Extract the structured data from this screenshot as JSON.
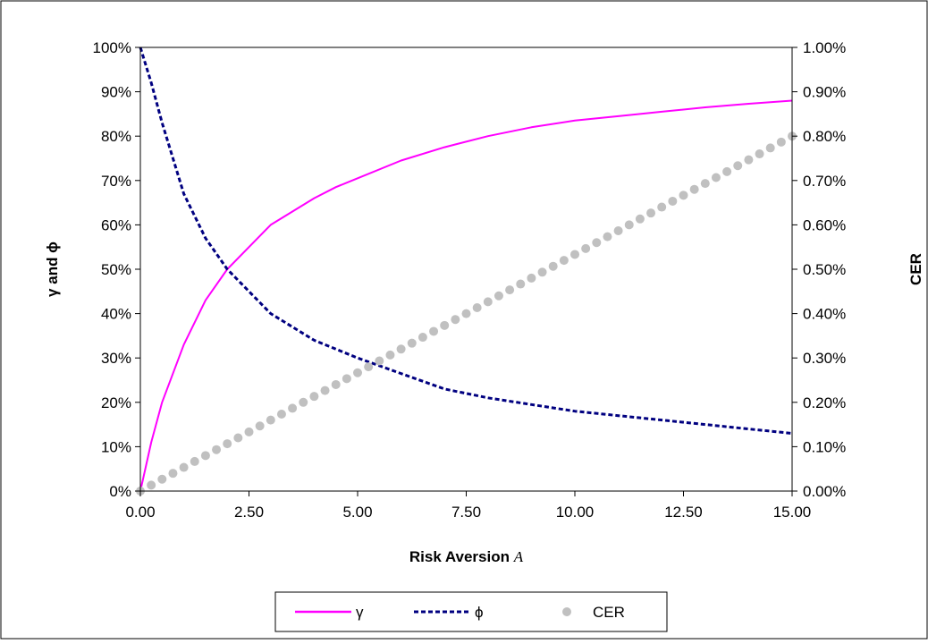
{
  "chart_data": {
    "type": "line",
    "title": "",
    "xlabel_text": "Risk Aversion ",
    "xlabel_var": "A",
    "ylabel_left": "γ and ϕ",
    "ylabel_right": "CER",
    "xlim": [
      0,
      15
    ],
    "xticks": [
      0,
      2.5,
      5,
      7.5,
      10,
      12.5,
      15
    ],
    "xtick_labels": [
      "0.00",
      "2.50",
      "5.00",
      "7.50",
      "10.00",
      "12.50",
      "15.00"
    ],
    "ylim_left": [
      0,
      100
    ],
    "yticks_left": [
      0,
      10,
      20,
      30,
      40,
      50,
      60,
      70,
      80,
      90,
      100
    ],
    "ytick_labels_left": [
      "0%",
      "10%",
      "20%",
      "30%",
      "40%",
      "50%",
      "60%",
      "70%",
      "80%",
      "90%",
      "100%"
    ],
    "ylim_right": [
      0,
      1
    ],
    "yticks_right": [
      0,
      0.1,
      0.2,
      0.3,
      0.4,
      0.5,
      0.6,
      0.7,
      0.8,
      0.9,
      1.0
    ],
    "ytick_labels_right": [
      "0.00%",
      "0.10%",
      "0.20%",
      "0.30%",
      "0.40%",
      "0.50%",
      "0.60%",
      "0.70%",
      "0.80%",
      "0.90%",
      "1.00%"
    ],
    "grid": false,
    "legend_position": "bottom",
    "x": [
      0.0,
      0.25,
      0.5,
      1.0,
      1.5,
      2.0,
      2.5,
      3.0,
      3.5,
      4.0,
      4.5,
      5.0,
      6.0,
      7.0,
      8.0,
      9.0,
      10.0,
      11.0,
      12.0,
      13.0,
      14.0,
      15.0
    ],
    "series": [
      {
        "name": "γ",
        "style": "solid",
        "color": "#ff00ff",
        "axis": "left",
        "values": [
          0,
          11,
          20,
          33,
          43,
          50,
          55,
          60,
          63,
          66,
          68.5,
          70.5,
          74.5,
          77.5,
          80,
          82,
          83.5,
          84.5,
          85.5,
          86.5,
          87.3,
          88
        ]
      },
      {
        "name": "ϕ",
        "style": "dashed",
        "color": "#000080",
        "axis": "left",
        "values": [
          100,
          92,
          83,
          67,
          57,
          50,
          45,
          40,
          37,
          34,
          32,
          30,
          26.5,
          23,
          21,
          19.5,
          18,
          17,
          16,
          15,
          14,
          13
        ]
      },
      {
        "name": "CER",
        "style": "markers",
        "color": "#c0c0c0",
        "axis": "right",
        "x_start": 0,
        "x_end": 15,
        "count": 61,
        "values_rule": "linear",
        "y_start": 0,
        "y_end": 0.8
      }
    ]
  }
}
